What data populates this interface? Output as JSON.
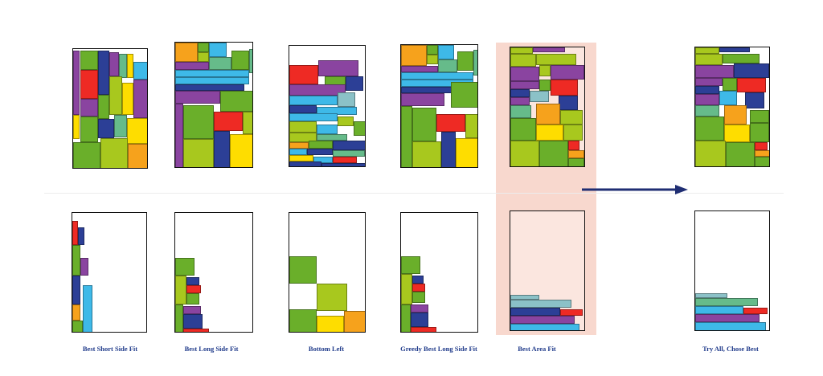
{
  "colors": {
    "highlight": "#f8d8ce",
    "arrow": "#1f2e73",
    "caption": "#1f3a8a",
    "palette": [
      "#6aaf2a",
      "#a8c81e",
      "#ee2a24",
      "#2c3f96",
      "#8a44a0",
      "#f6a21c",
      "#fedd00",
      "#3eb9e8",
      "#66bb8a",
      "#8bc1c7"
    ]
  },
  "arrow": {
    "direction": "right",
    "icon": "arrow-right-icon"
  },
  "captions": [
    {
      "id": "best-short-side-fit",
      "label": "Best Short Side Fit"
    },
    {
      "id": "best-long-side-fit",
      "label": "Best Long Side Fit"
    },
    {
      "id": "bottom-left",
      "label": "Bottom Left"
    },
    {
      "id": "greedy-best-long-side-fit",
      "label": "Greedy Best Long Side Fit"
    },
    {
      "id": "best-area-fit",
      "label": "Best Area Fit"
    },
    {
      "id": "try-all-chose-best",
      "label": "Try All, Chose Best"
    }
  ]
}
